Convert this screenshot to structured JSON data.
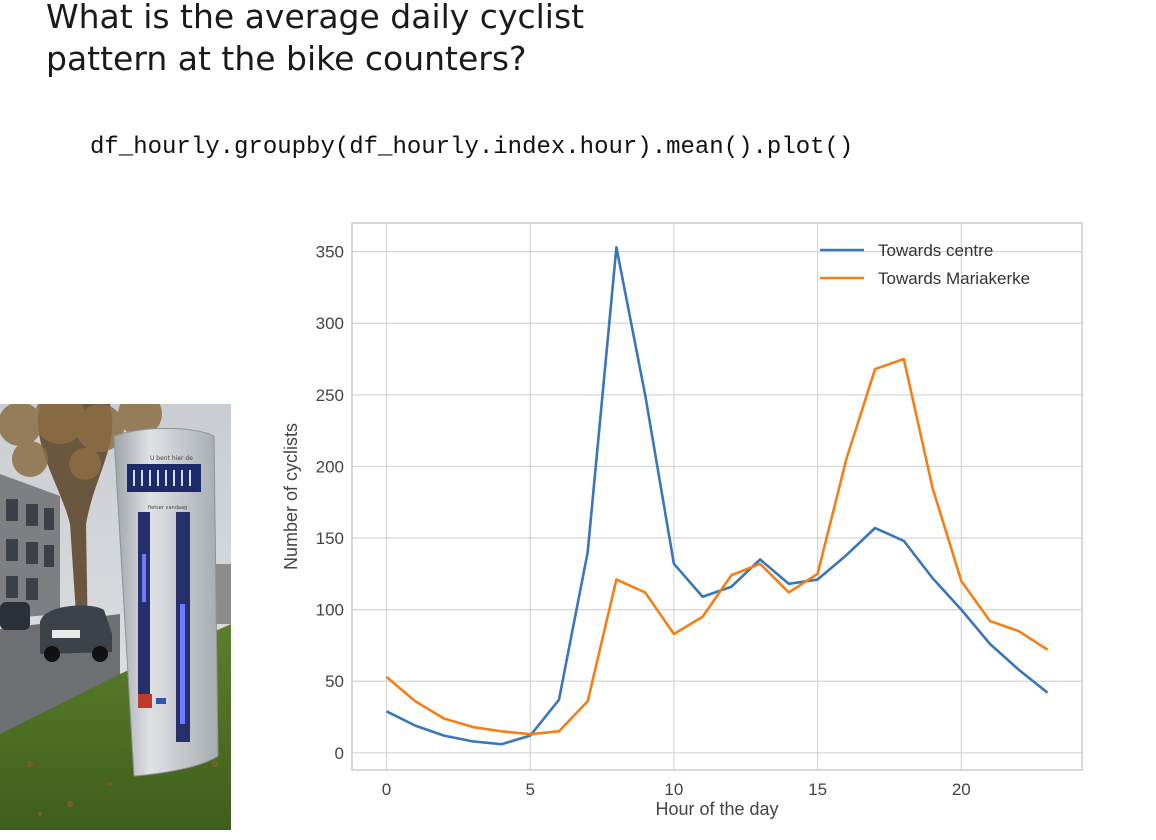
{
  "slide": {
    "title_line1": "What is the average daily cyclist",
    "title_line2": "pattern at the bike counters?",
    "code": "df_hourly.groupby(df_hourly.index.hour).mean().plot()"
  },
  "photo": {
    "sign_top_text": "U bent hier de",
    "sign_sub_text": "fietser vandaag"
  },
  "chart_data": {
    "type": "line",
    "x": [
      0,
      1,
      2,
      3,
      4,
      5,
      6,
      7,
      8,
      9,
      10,
      11,
      12,
      13,
      14,
      15,
      16,
      17,
      18,
      19,
      20,
      21,
      22,
      23
    ],
    "series": [
      {
        "name": "Towards centre",
        "color": "#3a76b8",
        "values": [
          29,
          19,
          12,
          8,
          6,
          12,
          37,
          140,
          353,
          250,
          132,
          109,
          116,
          135,
          118,
          121,
          138,
          157,
          148,
          122,
          100,
          76,
          58,
          42
        ]
      },
      {
        "name": "Towards Mariakerke",
        "color": "#f57f17",
        "values": [
          53,
          36,
          24,
          18,
          15,
          13,
          15,
          36,
          121,
          112,
          83,
          95,
          124,
          132,
          112,
          125,
          205,
          268,
          275,
          185,
          120,
          92,
          85,
          72
        ]
      }
    ],
    "xlabel": "Hour of the day",
    "ylabel": "Number of cyclists",
    "xlim": [
      -1.2,
      24.2
    ],
    "ylim": [
      -12,
      370
    ],
    "xticks": [
      0,
      5,
      10,
      15,
      20
    ],
    "yticks": [
      0,
      50,
      100,
      150,
      200,
      250,
      300,
      350
    ],
    "grid": true,
    "legend": "top-right"
  }
}
